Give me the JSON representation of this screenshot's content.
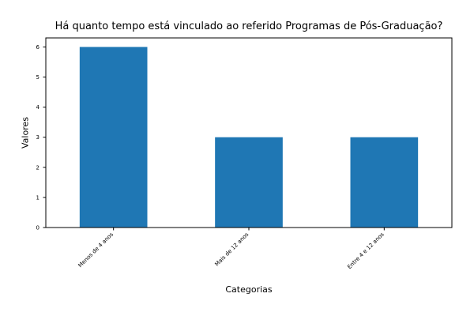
{
  "chart_data": {
    "type": "bar",
    "title": "Há quanto tempo está vinculado ao referido Programas de Pós-Graduação?",
    "xlabel": "Categorias",
    "ylabel": "Valores",
    "categories": [
      "Menos de 4 anos",
      "Mais de 12 anos",
      "Entre 4 e 12 anos"
    ],
    "values": [
      6,
      3,
      3
    ],
    "ylim": [
      0,
      6.3
    ],
    "yticks": [
      0,
      1,
      2,
      3,
      4,
      5,
      6
    ],
    "bar_color": "#1f77b4",
    "grid": false,
    "legend": false
  }
}
